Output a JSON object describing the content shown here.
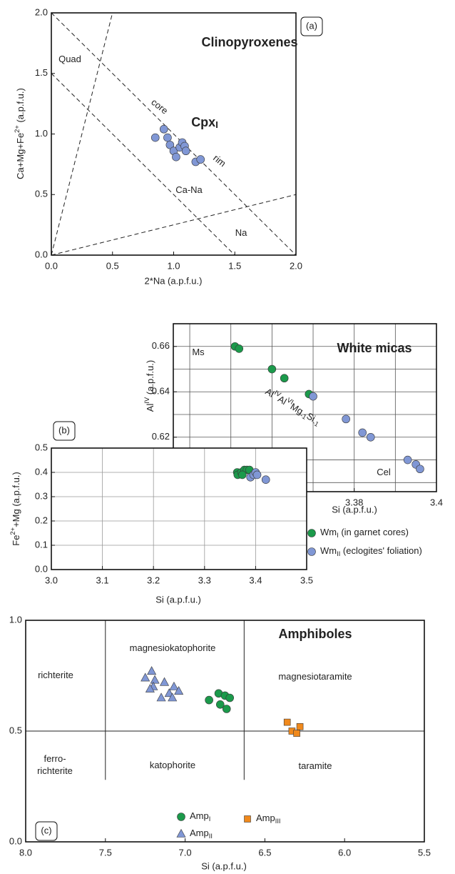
{
  "chart_data": [
    {
      "type": "scatter",
      "label": "(a)",
      "title": "Clinopyroxenes",
      "phase": [
        "Cpx",
        {
          "sub": "I"
        }
      ],
      "xlabel": "2*Na (a.p.f.u.)",
      "ylabel": [
        "Ca+Mg+Fe",
        {
          "sup": "2+"
        },
        " (a.p.f.u.)"
      ],
      "xlim": [
        0,
        2
      ],
      "ylim": [
        0,
        2
      ],
      "xticks": [
        {
          "value": 0,
          "label": "0.0"
        },
        0.5,
        {
          "value": 1,
          "label": "1.0"
        },
        1.5,
        {
          "value": 2,
          "label": "2.0"
        }
      ],
      "yticks": [
        {
          "value": 0,
          "label": "0.0"
        },
        0.5,
        {
          "value": 1,
          "label": "1.0"
        },
        1.5,
        {
          "value": 2,
          "label": "2.0"
        }
      ],
      "lines": [
        [
          0,
          0,
          0.5,
          2
        ],
        [
          0,
          2,
          2,
          0
        ],
        [
          0,
          1.5,
          1.5,
          0
        ],
        [
          0,
          0,
          2,
          0.5
        ]
      ],
      "line_style": "dashed",
      "annotations": [
        "Quad",
        "Ca-Na",
        "Na",
        "core",
        "rim"
      ],
      "series": [
        {
          "color": "#8097d5",
          "marker": "circle",
          "x": [
            0.85,
            0.92,
            0.95,
            0.97,
            1.0,
            1.02,
            1.05,
            1.07,
            1.09,
            1.1,
            1.18,
            1.22
          ],
          "values": [
            0.97,
            1.04,
            0.97,
            0.91,
            0.86,
            0.81,
            0.89,
            0.93,
            0.9,
            0.86,
            0.77,
            0.79
          ]
        }
      ]
    },
    {
      "type": "scatter",
      "title": "White micas",
      "xlabel": "Si (a.p.f.u.)",
      "ylabel": [
        "Al",
        {
          "sup": "IV"
        },
        " (a.p.f.u.)"
      ],
      "xlim": [
        3.336,
        3.4
      ],
      "ylim": [
        0.596,
        0.67
      ],
      "xticks": [
        3.38,
        3.4
      ],
      "yticks": [
        0.62,
        0.64,
        0.66
      ],
      "xgrid": [
        3.34,
        3.35,
        3.36,
        3.37,
        3.38,
        3.39
      ],
      "ygrid": [
        0.6,
        0.61,
        0.62,
        0.63,
        0.64,
        0.65,
        0.66
      ],
      "annotations": [
        "Ms",
        "Cel",
        [
          "Al",
          {
            "sup": "IV"
          },
          "Al",
          {
            "sup": "VI"
          },
          "Mg",
          {
            "sub": "-1"
          },
          "Si",
          {
            "sub": "-1"
          }
        ]
      ],
      "series": [
        {
          "color": "#1b9a4b",
          "marker": "circle",
          "x": [
            3.351,
            3.352,
            3.36,
            3.363,
            3.369
          ],
          "values": [
            0.66,
            0.659,
            0.65,
            0.646,
            0.639
          ]
        },
        {
          "color": "#8097d5",
          "marker": "circle",
          "x": [
            3.37,
            3.378,
            3.382,
            3.384,
            3.393,
            3.395,
            3.396
          ],
          "values": [
            0.638,
            0.628,
            0.622,
            0.62,
            0.61,
            0.608,
            0.606
          ]
        }
      ]
    },
    {
      "type": "scatter",
      "label": "(b)",
      "xlabel": "Si (a.p.f.u.)",
      "ylabel": [
        "Fe",
        {
          "sup": "2+"
        },
        "+Mg (a.p.f.u.)"
      ],
      "xlim": [
        3,
        3.5
      ],
      "ylim": [
        0,
        0.5
      ],
      "grid": true,
      "xticks": [
        {
          "value": 3,
          "label": "3.0"
        },
        3.1,
        3.2,
        3.3,
        3.4,
        3.5
      ],
      "yticks": [
        {
          "value": 0,
          "label": "0.0"
        },
        0.1,
        0.2,
        0.3,
        0.4,
        0.5
      ],
      "legend": "right",
      "series": [
        {
          "name": [
            "Wm",
            {
              "sub": "I"
            },
            " (in garnet cores)"
          ],
          "color": "#1b9a4b",
          "marker": "circle",
          "x": [
            3.364,
            3.365,
            3.372,
            3.378,
            3.383,
            3.388,
            3.374
          ],
          "values": [
            0.4,
            0.39,
            0.4,
            0.41,
            0.41,
            0.41,
            0.39
          ]
        },
        {
          "name": [
            "Wm",
            {
              "sub": "II"
            },
            " (eclogites' foliation)"
          ],
          "color": "#8097d5",
          "marker": "circle",
          "x": [
            3.39,
            3.396,
            3.4,
            3.403,
            3.42
          ],
          "values": [
            0.38,
            0.39,
            0.4,
            0.39,
            0.37
          ]
        }
      ]
    },
    {
      "type": "scatter",
      "label": "(c)",
      "title": "Amphiboles",
      "xlabel": "Si (a.p.f.u.)",
      "xlim": [
        8,
        5.5
      ],
      "ylim": [
        0,
        1
      ],
      "xticks": [
        {
          "value": 8,
          "label": "8.0"
        },
        7.5,
        {
          "value": 7,
          "label": "7.0"
        },
        6.5,
        {
          "value": 6,
          "label": "6.0"
        },
        5.5
      ],
      "yticks": [
        {
          "value": 0,
          "label": "0.0"
        },
        0.5,
        {
          "value": 1,
          "label": "1.0"
        }
      ],
      "lines": [
        [
          7.5,
          1,
          7.5,
          0.28
        ],
        [
          6.63,
          1,
          6.63,
          0.28
        ],
        [
          8,
          0.5,
          5.5,
          0.5
        ]
      ],
      "line_style": "solid",
      "annotations": [
        "magnesiokatophorite",
        "richterite",
        "magnesiotaramite",
        "ferro-",
        "richterite",
        "katophorite",
        "taramite"
      ],
      "legend": "bottom",
      "series": [
        {
          "name": [
            "Amp",
            {
              "sub": "I"
            }
          ],
          "color": "#1b9a4b",
          "marker": "circle",
          "x": [
            6.85,
            6.79,
            6.75,
            6.72,
            6.78,
            6.74
          ],
          "values": [
            0.64,
            0.67,
            0.66,
            0.65,
            0.62,
            0.6
          ]
        },
        {
          "name": [
            "Amp",
            {
              "sub": "II"
            }
          ],
          "color": "#8097d5",
          "marker": "triangle",
          "x": [
            7.21,
            7.25,
            7.19,
            7.13,
            7.2,
            7.07,
            7.04,
            7.1,
            7.15,
            7.08,
            7.22
          ],
          "values": [
            0.77,
            0.74,
            0.73,
            0.72,
            0.7,
            0.7,
            0.68,
            0.67,
            0.65,
            0.65,
            0.69
          ]
        },
        {
          "name": [
            "Amp",
            {
              "sub": "III"
            }
          ],
          "color": "#f0891c",
          "marker": "square",
          "x": [
            6.36,
            6.33,
            6.3,
            6.28
          ],
          "values": [
            0.54,
            0.5,
            0.49,
            0.52
          ]
        }
      ]
    }
  ]
}
